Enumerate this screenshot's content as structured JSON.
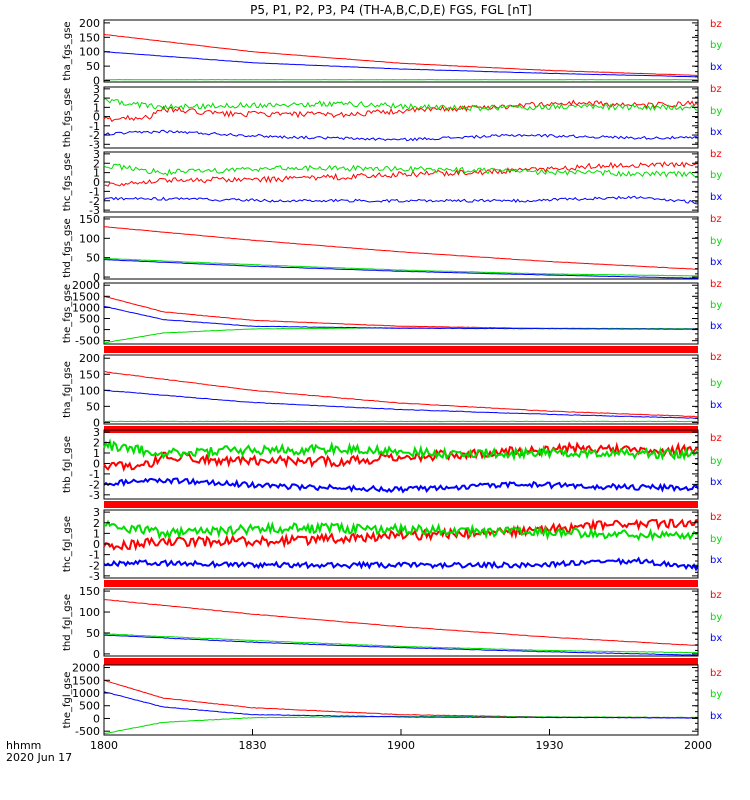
{
  "title": "P5, P1, P2, P3, P4 (TH-A,B,C,D,E) FGS, FGL [nT]",
  "footer": {
    "line1": "hhmm",
    "line2": "2020 Jun 17"
  },
  "x_ticks": [
    "1800",
    "1830",
    "1900",
    "1930",
    "2000"
  ],
  "colors": {
    "bx": "#0000ff",
    "by": "#00dd00",
    "bz": "#ff0000",
    "bar": "#ff0000",
    "frame": "#000000"
  },
  "legend": [
    "bz",
    "by",
    "bx"
  ],
  "chart_data": [
    {
      "type": "line",
      "ylabel": "tha_fgs_gse",
      "ylim": [
        -5,
        210
      ],
      "ticks": [
        0,
        50,
        100,
        150,
        200
      ],
      "x_range": [
        "1800",
        "2000"
      ],
      "bottom_bar": false,
      "series": [
        {
          "name": "bz",
          "x": [
            0,
            0.25,
            0.5,
            0.75,
            1.0
          ],
          "y": [
            160,
            100,
            60,
            35,
            18
          ],
          "noise": 0.5
        },
        {
          "name": "by",
          "x": [
            0,
            0.5,
            1.0
          ],
          "y": [
            3,
            3,
            3
          ],
          "noise": 0.3
        },
        {
          "name": "bx",
          "x": [
            0,
            0.25,
            0.5,
            0.75,
            1.0
          ],
          "y": [
            100,
            62,
            40,
            25,
            13
          ],
          "noise": 0.5
        }
      ]
    },
    {
      "type": "line",
      "ylabel": "thb_fgs_gse",
      "ylim": [
        -3.4,
        3.2
      ],
      "ticks": [
        -3,
        -2,
        -1,
        0,
        1,
        2,
        3
      ],
      "x_range": [
        "1800",
        "2000"
      ],
      "bottom_bar": false,
      "series": [
        {
          "name": "bz",
          "x": [
            0,
            0.08,
            0.1,
            0.2,
            0.4,
            0.5,
            0.6,
            0.8,
            0.9,
            1.0
          ],
          "y": [
            -0.3,
            0,
            0.8,
            0.3,
            0.2,
            0.6,
            0.9,
            1.5,
            1.2,
            1.4
          ],
          "noise": 0.3
        },
        {
          "name": "by",
          "x": [
            0,
            0.1,
            0.2,
            0.4,
            0.6,
            0.8,
            1.0
          ],
          "y": [
            1.7,
            1.0,
            1.2,
            1.4,
            0.9,
            1.1,
            0.9
          ],
          "noise": 0.3
        },
        {
          "name": "bx",
          "x": [
            0,
            0.1,
            0.3,
            0.5,
            0.7,
            0.9,
            1.0
          ],
          "y": [
            -1.9,
            -1.6,
            -2.2,
            -2.5,
            -2.0,
            -2.3,
            -2.3
          ],
          "noise": 0.15
        }
      ]
    },
    {
      "type": "line",
      "ylabel": "thc_fgs_gse",
      "ylim": [
        -3.2,
        3.2
      ],
      "ticks": [
        -3,
        -2,
        -1,
        0,
        1,
        2,
        3
      ],
      "x_range": [
        "1800",
        "2000"
      ],
      "bottom_bar": false,
      "series": [
        {
          "name": "bz",
          "x": [
            0,
            0.1,
            0.3,
            0.5,
            0.7,
            0.85,
            1.0
          ],
          "y": [
            -0.3,
            0.2,
            0.3,
            0.8,
            1.2,
            1.8,
            1.9
          ],
          "noise": 0.3
        },
        {
          "name": "by",
          "x": [
            0,
            0.1,
            0.3,
            0.5,
            0.7,
            1.0
          ],
          "y": [
            1.8,
            1.0,
            1.5,
            1.4,
            1.1,
            0.8
          ],
          "noise": 0.3
        },
        {
          "name": "bx",
          "x": [
            0,
            0.1,
            0.3,
            0.5,
            0.7,
            0.9,
            1.0
          ],
          "y": [
            -1.8,
            -1.8,
            -2.0,
            -2.0,
            -2.0,
            -1.6,
            -2.2
          ],
          "noise": 0.15
        }
      ]
    },
    {
      "type": "line",
      "ylabel": "thd_fgs_gse",
      "ylim": [
        -5,
        155
      ],
      "ticks": [
        0,
        50,
        100,
        150
      ],
      "x_range": [
        "1800",
        "2000"
      ],
      "bottom_bar": false,
      "series": [
        {
          "name": "bz",
          "x": [
            0,
            0.25,
            0.5,
            0.75,
            1.0
          ],
          "y": [
            130,
            95,
            65,
            40,
            20
          ],
          "noise": 0.4
        },
        {
          "name": "by",
          "x": [
            0,
            0.25,
            0.5,
            0.75,
            1.0
          ],
          "y": [
            48,
            32,
            18,
            8,
            3
          ],
          "noise": 0.4
        },
        {
          "name": "bx",
          "x": [
            0,
            0.25,
            0.5,
            0.75,
            1.0
          ],
          "y": [
            45,
            28,
            15,
            5,
            -3
          ],
          "noise": 0.4
        }
      ]
    },
    {
      "type": "line",
      "ylabel": "the_fgs_gse",
      "ylim": [
        -650,
        2100
      ],
      "ticks": [
        -500,
        0,
        500,
        1000,
        1500,
        2000
      ],
      "x_range": [
        "1800",
        "2000"
      ],
      "bottom_bar": true,
      "series": [
        {
          "name": "bz",
          "x": [
            0,
            0.1,
            0.25,
            0.5,
            0.75,
            1.0
          ],
          "y": [
            1500,
            800,
            420,
            150,
            50,
            30
          ],
          "noise": 8
        },
        {
          "name": "by",
          "x": [
            0,
            0.1,
            0.25,
            0.5,
            0.75,
            1.0
          ],
          "y": [
            -600,
            -150,
            30,
            80,
            60,
            40
          ],
          "noise": 8
        },
        {
          "name": "bx",
          "x": [
            0,
            0.1,
            0.25,
            0.5,
            0.75,
            1.0
          ],
          "y": [
            1050,
            450,
            150,
            60,
            40,
            20
          ],
          "noise": 8
        }
      ]
    },
    {
      "type": "line",
      "ylabel": "tha_fgl_gse",
      "ylim": [
        -5,
        210
      ],
      "ticks": [
        0,
        50,
        100,
        150,
        200
      ],
      "x_range": [
        "1800",
        "2000"
      ],
      "bottom_bar": true,
      "series": [
        {
          "name": "bz",
          "x": [
            0,
            0.25,
            0.5,
            0.75,
            1.0
          ],
          "y": [
            158,
            100,
            60,
            35,
            18
          ],
          "noise": 0.8
        },
        {
          "name": "by",
          "x": [
            0,
            0.5,
            1.0
          ],
          "y": [
            3,
            3,
            3
          ],
          "noise": 0.5
        },
        {
          "name": "bx",
          "x": [
            0,
            0.25,
            0.5,
            0.75,
            1.0
          ],
          "y": [
            100,
            62,
            40,
            25,
            13
          ],
          "noise": 0.8
        }
      ]
    },
    {
      "type": "line",
      "ylabel": "thb_fgl_gse",
      "ylim": [
        -3.4,
        3.2
      ],
      "ticks": [
        -3,
        -2,
        -1,
        0,
        1,
        2,
        3
      ],
      "x_range": [
        "1800",
        "2000"
      ],
      "bottom_bar": true,
      "series": [
        {
          "name": "bz",
          "x": [
            0,
            0.08,
            0.1,
            0.2,
            0.4,
            0.5,
            0.6,
            0.8,
            0.9,
            1.0
          ],
          "y": [
            -0.3,
            0,
            0.8,
            0.3,
            0.2,
            0.6,
            0.9,
            1.5,
            1.2,
            1.4
          ],
          "noise": 0.45
        },
        {
          "name": "by",
          "x": [
            0,
            0.1,
            0.2,
            0.4,
            0.6,
            0.8,
            1.0
          ],
          "y": [
            1.7,
            1.0,
            1.2,
            1.4,
            0.9,
            1.1,
            0.9
          ],
          "noise": 0.45
        },
        {
          "name": "bx",
          "x": [
            0,
            0.1,
            0.3,
            0.5,
            0.7,
            0.9,
            1.0
          ],
          "y": [
            -1.9,
            -1.6,
            -2.2,
            -2.5,
            -2.0,
            -2.3,
            -2.3
          ],
          "noise": 0.25
        }
      ]
    },
    {
      "type": "line",
      "ylabel": "thc_fgl_gse",
      "ylim": [
        -3.2,
        3.2
      ],
      "ticks": [
        -3,
        -2,
        -1,
        0,
        1,
        2,
        3
      ],
      "x_range": [
        "1800",
        "2000"
      ],
      "bottom_bar": true,
      "series": [
        {
          "name": "bz",
          "x": [
            0,
            0.1,
            0.3,
            0.5,
            0.7,
            0.85,
            1.0
          ],
          "y": [
            -0.3,
            0.2,
            0.3,
            0.8,
            1.2,
            1.8,
            1.9
          ],
          "noise": 0.45
        },
        {
          "name": "by",
          "x": [
            0,
            0.1,
            0.3,
            0.5,
            0.7,
            1.0
          ],
          "y": [
            1.8,
            1.0,
            1.5,
            1.4,
            1.1,
            0.8
          ],
          "noise": 0.45
        },
        {
          "name": "bx",
          "x": [
            0,
            0.1,
            0.3,
            0.5,
            0.7,
            0.9,
            1.0
          ],
          "y": [
            -1.8,
            -1.8,
            -2.0,
            -2.0,
            -2.0,
            -1.6,
            -2.2
          ],
          "noise": 0.25
        }
      ]
    },
    {
      "type": "line",
      "ylabel": "thd_fgl_gse",
      "ylim": [
        -5,
        155
      ],
      "ticks": [
        0,
        50,
        100,
        150
      ],
      "x_range": [
        "1800",
        "2000"
      ],
      "bottom_bar": true,
      "series": [
        {
          "name": "bz",
          "x": [
            0,
            0.25,
            0.5,
            0.75,
            1.0
          ],
          "y": [
            130,
            95,
            65,
            40,
            20
          ],
          "noise": 0.5
        },
        {
          "name": "by",
          "x": [
            0,
            0.25,
            0.5,
            0.75,
            1.0
          ],
          "y": [
            48,
            32,
            18,
            8,
            3
          ],
          "noise": 0.5
        },
        {
          "name": "bx",
          "x": [
            0,
            0.25,
            0.5,
            0.75,
            1.0
          ],
          "y": [
            45,
            28,
            15,
            5,
            -3
          ],
          "noise": 0.5
        }
      ]
    },
    {
      "type": "line",
      "ylabel": "the_fgl_gse",
      "ylim": [
        -650,
        2100
      ],
      "ticks": [
        -500,
        0,
        500,
        1000,
        1500,
        2000
      ],
      "x_range": [
        "1800",
        "2000"
      ],
      "bottom_bar": false,
      "series": [
        {
          "name": "bz",
          "x": [
            0,
            0.1,
            0.25,
            0.5,
            0.75,
            1.0
          ],
          "y": [
            1500,
            800,
            420,
            150,
            50,
            30
          ],
          "noise": 10
        },
        {
          "name": "by",
          "x": [
            0,
            0.1,
            0.25,
            0.5,
            0.75,
            1.0
          ],
          "y": [
            -600,
            -150,
            30,
            80,
            60,
            40
          ],
          "noise": 10
        },
        {
          "name": "bx",
          "x": [
            0,
            0.1,
            0.25,
            0.5,
            0.75,
            1.0
          ],
          "y": [
            1050,
            450,
            150,
            60,
            40,
            20
          ],
          "noise": 10
        }
      ]
    }
  ]
}
